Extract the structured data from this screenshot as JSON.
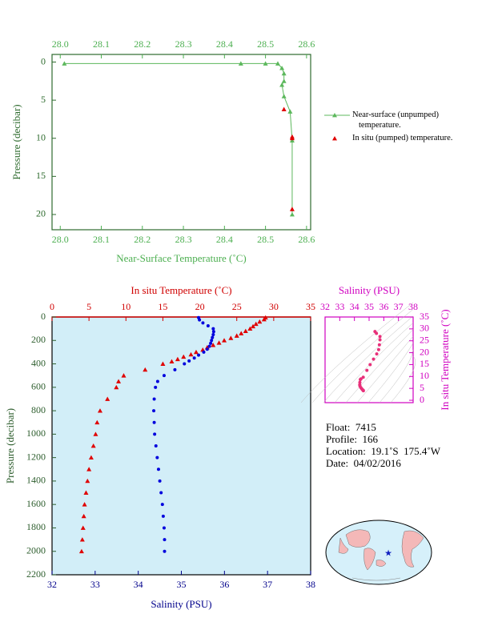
{
  "chart_data": [
    {
      "type": "line",
      "x_label": "Near-Surface Temperature (˚C)",
      "y_label": "Pressure (decibar)",
      "axis_color": "#4caf50",
      "xlim": [
        27.98,
        28.61
      ],
      "xticks": [
        {
          "value": 28,
          "label": "28.0"
        },
        28.1,
        28.2,
        28.3,
        28.4,
        28.5,
        28.6
      ],
      "ylim": [
        22,
        -1
      ],
      "yticks": [
        0,
        5,
        10,
        15,
        20
      ],
      "series": [
        {
          "name": "Near-surface (unpumped) temperature.",
          "color": "#5cb85c",
          "marker": "triangle",
          "line": true,
          "x": [
            28.01,
            28.44,
            28.5,
            28.53,
            28.54,
            28.545,
            28.545,
            28.54,
            28.545,
            28.56,
            28.565,
            28.565
          ],
          "values": [
            0.2,
            0.2,
            0.2,
            0.2,
            0.8,
            1.5,
            2.5,
            3,
            4.5,
            6.5,
            10.3,
            20
          ]
        },
        {
          "name": "In situ (pumped) temperature.",
          "color": "#e00000",
          "marker": "triangle",
          "line": false,
          "x": [
            28.545,
            28.565,
            28.565,
            28.565
          ],
          "values": [
            6.2,
            9.8,
            10,
            19.3
          ]
        }
      ]
    },
    {
      "type": "scatter",
      "x_label": "Salinity (PSU)",
      "x2_label": "In situ Temperature (˚C)",
      "y_label": "Pressure (decibar)",
      "background": "#d2eef8",
      "xlim": [
        32,
        38
      ],
      "xticks": [
        32,
        33,
        34,
        35,
        36,
        37,
        38
      ],
      "x2lim": [
        0,
        35
      ],
      "x2ticks": [
        0,
        5,
        10,
        15,
        20,
        25,
        30,
        35
      ],
      "ylim": [
        2200,
        0
      ],
      "yticks": [
        0,
        200,
        400,
        600,
        800,
        1000,
        1200,
        1400,
        1600,
        1800,
        2000,
        2200
      ],
      "series": [
        {
          "color": "#e00000",
          "marker": "triangle",
          "axis": "x2",
          "x": [
            28.9,
            28.7,
            28.1,
            27.6,
            27.2,
            26.8,
            26.2,
            25.6,
            25.0,
            24.2,
            23.3,
            22.6,
            21.8,
            21.0,
            20.4,
            19.5,
            18.8,
            17.8,
            17.0,
            16.2,
            15.0,
            12.6,
            9.7,
            9.0,
            8.7,
            7.5,
            6.5,
            6.1,
            5.9,
            5.6,
            5.3,
            5.0,
            4.8,
            4.6,
            4.4,
            4.3,
            4.2,
            4.1,
            4.0
          ],
          "values": [
            5,
            20,
            40,
            60,
            80,
            100,
            120,
            140,
            160,
            180,
            200,
            220,
            240,
            260,
            280,
            300,
            320,
            340,
            360,
            380,
            400,
            450,
            500,
            550,
            600,
            700,
            800,
            900,
            1000,
            1100,
            1200,
            1300,
            1400,
            1500,
            1600,
            1700,
            1800,
            1900,
            2000
          ]
        },
        {
          "color": "#0000dd",
          "marker": "circle",
          "axis": "x",
          "x": [
            35.4,
            35.42,
            35.5,
            35.62,
            35.74,
            35.75,
            35.74,
            35.72,
            35.7,
            35.68,
            35.65,
            35.6,
            35.52,
            35.4,
            35.3,
            35.18,
            35.07,
            34.85,
            34.6,
            34.45,
            34.4,
            34.37,
            34.36,
            34.37,
            34.38,
            34.41,
            34.44,
            34.47,
            34.5,
            34.53,
            34.56,
            34.58,
            34.6,
            34.61,
            34.61
          ],
          "values": [
            5,
            25,
            50,
            75,
            100,
            125,
            150,
            175,
            200,
            225,
            250,
            275,
            300,
            325,
            350,
            375,
            400,
            450,
            500,
            550,
            600,
            700,
            800,
            900,
            1000,
            1100,
            1200,
            1300,
            1400,
            1500,
            1600,
            1700,
            1800,
            1900,
            2000
          ]
        }
      ]
    },
    {
      "type": "scatter",
      "x_label": "Salinity (PSU)",
      "y_label": "In situ Temperature (˚C)",
      "axis_color": "#d000c0",
      "xlim": [
        32,
        38
      ],
      "xticks": [
        32,
        33,
        34,
        35,
        36,
        37,
        38
      ],
      "ylim": [
        -1,
        35
      ],
      "yticks": [
        0,
        5,
        10,
        15,
        20,
        25,
        30,
        35
      ],
      "series": [
        {
          "color": "#e8307a",
          "marker": "circle",
          "x": [
            35.4,
            35.5,
            35.74,
            35.74,
            35.7,
            35.65,
            35.52,
            35.3,
            35.07,
            34.85,
            34.6,
            34.45,
            34.4,
            34.37,
            34.36,
            34.38,
            34.44,
            34.5,
            34.56,
            34.6,
            34.61
          ],
          "values": [
            28.9,
            28.1,
            26.8,
            25.4,
            23.3,
            21.3,
            19.5,
            17.3,
            15.0,
            12.6,
            9.7,
            9.0,
            8.7,
            7.5,
            6.5,
            5.9,
            5.3,
            4.8,
            4.4,
            4.2,
            4.0
          ]
        }
      ]
    }
  ],
  "info": {
    "lines": [
      "Float:  7415",
      "Profile:  166",
      "Location:  19.1˚S  175.4˚W",
      "Date:  04/02/2016"
    ]
  }
}
